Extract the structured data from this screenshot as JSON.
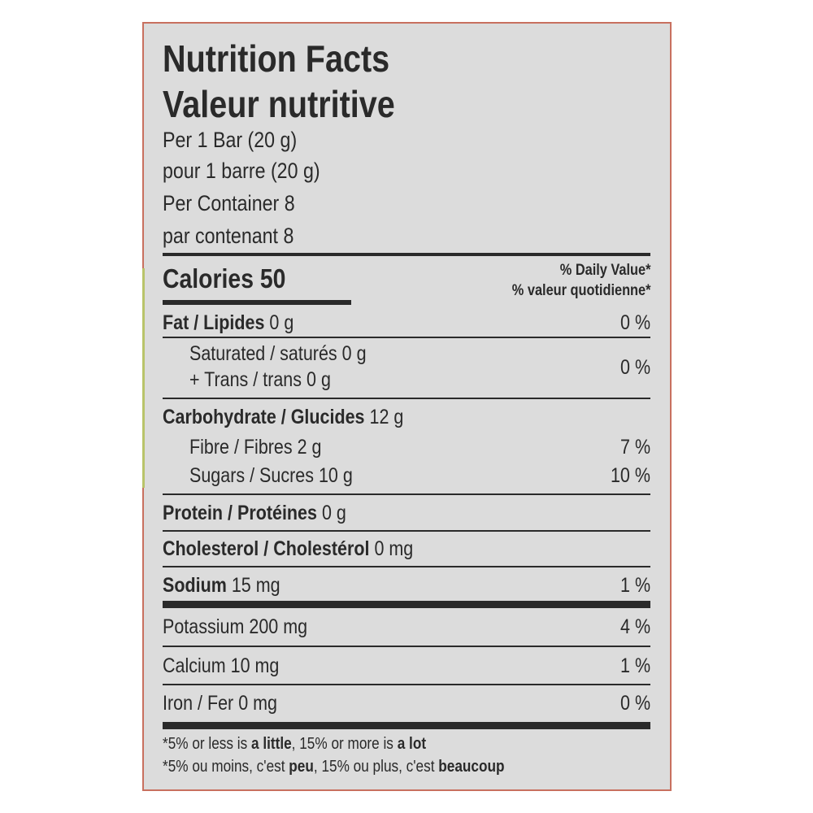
{
  "title_en": "Nutrition Facts",
  "title_fr": "Valeur nutritive",
  "serving": [
    "Per 1 Bar (20 g)",
    "pour 1 barre (20 g)",
    "Per Container 8",
    "par contenant 8"
  ],
  "calories": {
    "label": "Calories",
    "value": "50"
  },
  "daily_value_header": [
    "% Daily Value*",
    "% valeur quotidienne*"
  ],
  "nutrients": {
    "fat": {
      "label": "Fat / Lipides",
      "amount": "0 g",
      "dv": "0 %"
    },
    "saturated": {
      "label": "Saturated / saturés",
      "amount": "0 g"
    },
    "trans": {
      "label": "+ Trans / trans",
      "amount": "0 g"
    },
    "sat_trans_dv": "0 %",
    "carbohydrate": {
      "label": "Carbohydrate / Glucides",
      "amount": "12 g"
    },
    "fibre": {
      "label": "Fibre / Fibres",
      "amount": "2 g",
      "dv": "7 %"
    },
    "sugars": {
      "label": "Sugars / Sucres",
      "amount": "10 g",
      "dv": "10 %"
    },
    "protein": {
      "label": "Protein / Protéines",
      "amount": "0 g"
    },
    "cholesterol": {
      "label": "Cholesterol / Cholestérol",
      "amount": "0 mg"
    },
    "sodium": {
      "label": "Sodium",
      "amount": "15 mg",
      "dv": "1 %"
    },
    "potassium": {
      "label": "Potassium",
      "amount": "200 mg",
      "dv": "4 %"
    },
    "calcium": {
      "label": "Calcium",
      "amount": "10 mg",
      "dv": "1 %"
    },
    "iron": {
      "label": "Iron / Fer",
      "amount": "0 mg",
      "dv": "0 %"
    }
  },
  "footnote_en": {
    "a": "*5% or less is ",
    "b": "a little",
    "c": ", 15% or more is ",
    "d": "a lot"
  },
  "footnote_fr": {
    "a": "*5% ou moins, c'est ",
    "b": "peu",
    "c": ", 15% ou plus, c'est ",
    "d": "beaucoup"
  },
  "colors": {
    "border": "#c8705f",
    "background": "#dcdcdc",
    "text": "#2a2a2a"
  }
}
